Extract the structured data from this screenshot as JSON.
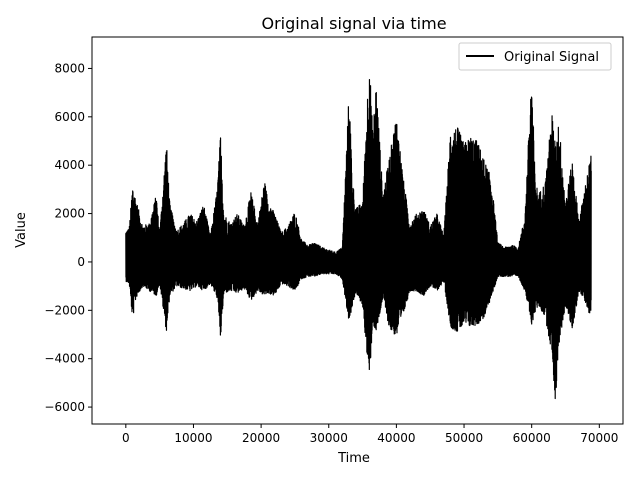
{
  "chart_data": {
    "type": "line",
    "title": "Original signal via time",
    "xlabel": "Time",
    "ylabel": "Value",
    "xlim": [
      -5000,
      73500
    ],
    "ylim": [
      -6700,
      9300
    ],
    "x_ticks": [
      0,
      10000,
      20000,
      30000,
      40000,
      50000,
      60000,
      70000
    ],
    "x_tick_labels": [
      "0",
      "10000",
      "20000",
      "30000",
      "40000",
      "50000",
      "60000",
      "70000"
    ],
    "y_ticks": [
      -6000,
      -4000,
      -2000,
      0,
      2000,
      4000,
      6000,
      8000
    ],
    "y_tick_labels": [
      "−6000",
      "−4000",
      "−2000",
      "0",
      "2000",
      "4000",
      "6000",
      "8000"
    ],
    "grid": false,
    "legend_position": "upper right",
    "series": [
      {
        "name": "Original Signal",
        "color": "#000000",
        "x_range": [
          0,
          68800
        ],
        "envelope_x": [
          0,
          500,
          1000,
          1500,
          2500,
          3500,
          4500,
          5000,
          6000,
          6500,
          7500,
          8500,
          9500,
          10500,
          11500,
          12500,
          13500,
          14000,
          14500,
          15500,
          16500,
          17500,
          18500,
          19500,
          20500,
          21000,
          22000,
          23000,
          24000,
          25000,
          26000,
          27000,
          28000,
          29000,
          30000,
          31000,
          32000,
          33000,
          33500,
          34000,
          35000,
          36000,
          36500,
          37000,
          38000,
          39000,
          40000,
          41000,
          42000,
          43000,
          44000,
          45000,
          46000,
          47000,
          48000,
          49000,
          50000,
          51000,
          52000,
          53000,
          54000,
          55000,
          56000,
          57000,
          58000,
          59000,
          60000,
          60500,
          61000,
          62000,
          63000,
          63500,
          64000,
          65000,
          66000,
          67000,
          68000,
          68800
        ],
        "envelope_upper": [
          1300,
          1400,
          3200,
          2600,
          1500,
          1600,
          2800,
          1200,
          5000,
          2400,
          1300,
          1600,
          2000,
          1700,
          2400,
          1100,
          3000,
          5300,
          2000,
          1600,
          2000,
          1500,
          2900,
          1600,
          3400,
          2600,
          2000,
          1200,
          1500,
          2100,
          900,
          700,
          800,
          600,
          500,
          400,
          600,
          7100,
          3500,
          2200,
          2500,
          8600,
          5300,
          7500,
          2800,
          4400,
          6100,
          3500,
          1600,
          2000,
          2200,
          1500,
          2000,
          1100,
          5500,
          5600,
          4900,
          5200,
          5000,
          4200,
          3500,
          800,
          600,
          700,
          600,
          1900,
          7900,
          3500,
          2800,
          3300,
          6200,
          4800,
          5900,
          2500,
          4200,
          1700,
          3300,
          4500
        ],
        "envelope_lower": [
          -800,
          -900,
          -2400,
          -1500,
          -1000,
          -1200,
          -1400,
          -900,
          -2900,
          -1400,
          -1000,
          -1100,
          -1200,
          -1000,
          -1200,
          -900,
          -1500,
          -3200,
          -1300,
          -1200,
          -1300,
          -1100,
          -1600,
          -1200,
          -1400,
          -1300,
          -1400,
          -900,
          -1000,
          -1200,
          -700,
          -600,
          -600,
          -500,
          -500,
          -500,
          -700,
          -2500,
          -1800,
          -1300,
          -1800,
          -5000,
          -2500,
          -3000,
          -1500,
          -2800,
          -3100,
          -2200,
          -1200,
          -1200,
          -1400,
          -1000,
          -1200,
          -800,
          -2700,
          -2900,
          -2600,
          -2700,
          -2600,
          -2300,
          -1500,
          -600,
          -600,
          -600,
          -600,
          -1200,
          -2600,
          -2100,
          -1800,
          -2300,
          -3800,
          -5900,
          -3500,
          -1800,
          -2800,
          -1200,
          -1700,
          -2400
        ]
      }
    ]
  }
}
